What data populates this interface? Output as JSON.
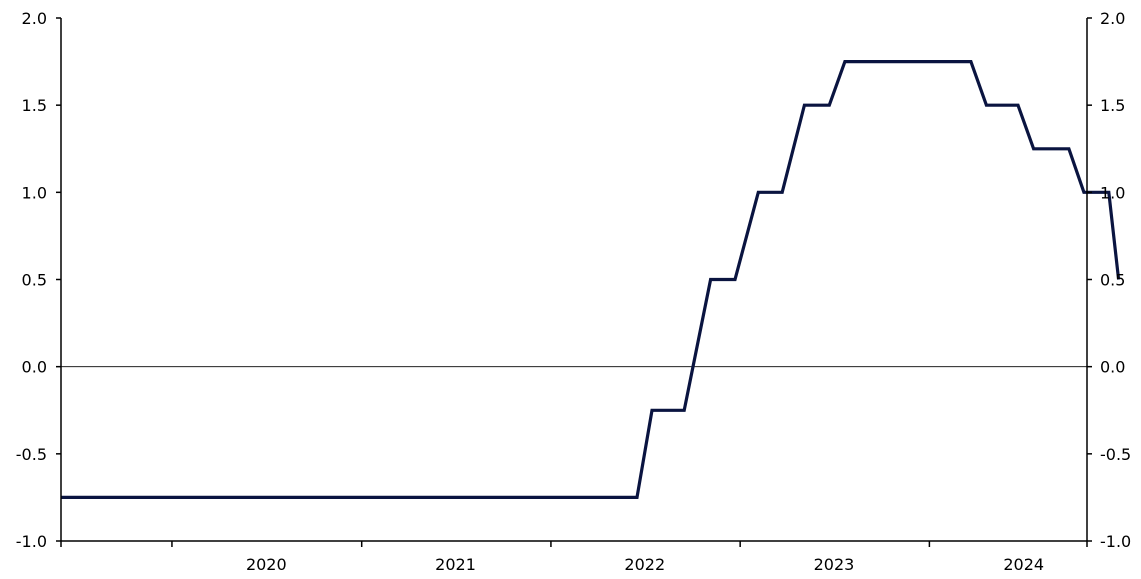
{
  "chart_data": {
    "type": "line",
    "title": "",
    "xlabel": "",
    "ylabel": "",
    "ylim": [
      -1.0,
      2.0
    ],
    "y_ticks": [
      2.0,
      1.5,
      1.0,
      0.5,
      0.0,
      -0.5,
      -1.0
    ],
    "y_tick_labels": [
      "2.0",
      "1.5",
      "1.0",
      "0.5",
      "0.0",
      "-0.5",
      "-1.0"
    ],
    "y_axis_right": true,
    "zero_line": true,
    "grid": false,
    "xlim": [
      "2019-06-01",
      "2024-10-31"
    ],
    "x_year_boundaries": [
      "2020-01-01",
      "2021-01-01",
      "2022-01-01",
      "2023-01-01",
      "2024-01-01"
    ],
    "x_labels": [
      {
        "label": "2020",
        "at": "2020-07-01"
      },
      {
        "label": "2021",
        "at": "2021-07-01"
      },
      {
        "label": "2022",
        "at": "2022-07-01"
      },
      {
        "label": "2023",
        "at": "2023-07-01"
      },
      {
        "label": "2024",
        "at": "2024-07-01"
      }
    ],
    "series": [
      {
        "color": "#0a1440",
        "points": [
          [
            "2019-06-01",
            -0.75
          ],
          [
            "2022-06-16",
            -0.75
          ],
          [
            "2022-07-15",
            -0.25
          ],
          [
            "2022-09-15",
            -0.25
          ],
          [
            "2022-11-05",
            0.5
          ],
          [
            "2022-12-22",
            0.5
          ],
          [
            "2023-02-05",
            1.0
          ],
          [
            "2023-03-23",
            1.0
          ],
          [
            "2023-05-05",
            1.5
          ],
          [
            "2023-06-22",
            1.5
          ],
          [
            "2023-07-22",
            1.75
          ],
          [
            "2024-03-21",
            1.75
          ],
          [
            "2024-04-20",
            1.5
          ],
          [
            "2024-06-20",
            1.5
          ],
          [
            "2024-07-20",
            1.25
          ],
          [
            "2024-09-26",
            1.25
          ],
          [
            "2024-10-25",
            1.0
          ],
          [
            "2024-12-12",
            1.0
          ],
          [
            "2024-12-31",
            0.5
          ]
        ]
      }
    ]
  }
}
